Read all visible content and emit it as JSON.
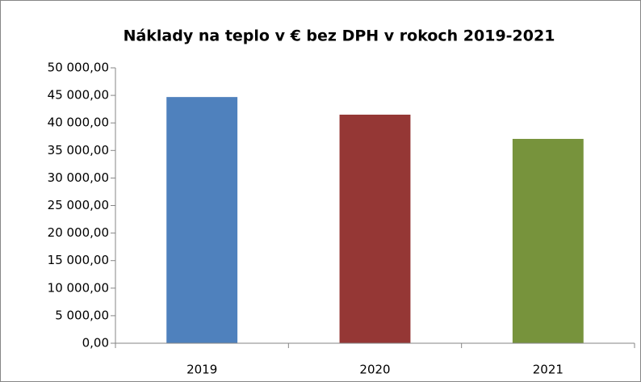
{
  "chart_data": {
    "type": "bar",
    "title": "Náklady na teplo v € bez DPH v rokoch 2019-2021",
    "categories": [
      "2019",
      "2020",
      "2021"
    ],
    "values": [
      44700,
      41500,
      37100
    ],
    "colors": [
      "#4f81bd",
      "#953735",
      "#77933c"
    ],
    "ylim": [
      0,
      50000
    ],
    "yticks": [
      {
        "value": 0,
        "label": "0,00"
      },
      {
        "value": 5000,
        "label": "5 000,00"
      },
      {
        "value": 10000,
        "label": "10 000,00"
      },
      {
        "value": 15000,
        "label": "15 000,00"
      },
      {
        "value": 20000,
        "label": "20 000,00"
      },
      {
        "value": 25000,
        "label": "25 000,00"
      },
      {
        "value": 30000,
        "label": "30 000,00"
      },
      {
        "value": 35000,
        "label": "35 000,00"
      },
      {
        "value": 40000,
        "label": "40 000,00"
      },
      {
        "value": 45000,
        "label": "45 000,00"
      },
      {
        "value": 50000,
        "label": "50 000,00"
      }
    ],
    "grid": false
  }
}
